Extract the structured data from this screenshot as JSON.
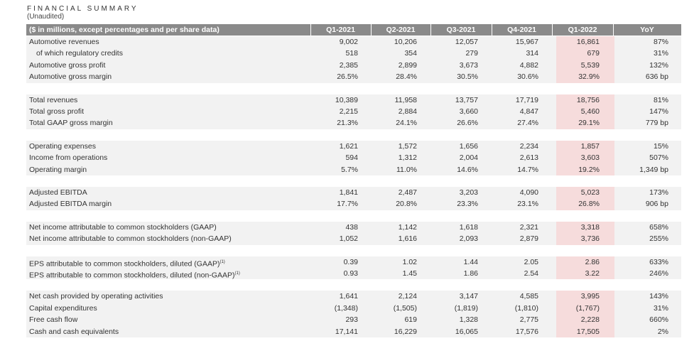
{
  "title": "FINANCIAL SUMMARY",
  "subtitle": "(Unaudited)",
  "header": {
    "label": "($ in millions, except percentages and per share data)",
    "columns": [
      "Q1-2021",
      "Q2-2021",
      "Q3-2021",
      "Q4-2021",
      "Q1-2022",
      "YoY"
    ]
  },
  "groups": [
    {
      "rows": [
        {
          "label": "Automotive revenues",
          "values": [
            "9,002",
            "10,206",
            "12,057",
            "15,967",
            "16,861",
            "87%"
          ]
        },
        {
          "label": "of which regulatory credits",
          "indent": true,
          "values": [
            "518",
            "354",
            "279",
            "314",
            "679",
            "31%"
          ]
        },
        {
          "label": "Automotive gross profit",
          "values": [
            "2,385",
            "2,899",
            "3,673",
            "4,882",
            "5,539",
            "132%"
          ]
        },
        {
          "label": "Automotive gross margin",
          "values": [
            "26.5%",
            "28.4%",
            "30.5%",
            "30.6%",
            "32.9%",
            "636 bp"
          ]
        }
      ]
    },
    {
      "rows": [
        {
          "label": "Total revenues",
          "values": [
            "10,389",
            "11,958",
            "13,757",
            "17,719",
            "18,756",
            "81%"
          ]
        },
        {
          "label": "Total gross profit",
          "values": [
            "2,215",
            "2,884",
            "3,660",
            "4,847",
            "5,460",
            "147%"
          ]
        },
        {
          "label": "Total GAAP gross margin",
          "values": [
            "21.3%",
            "24.1%",
            "26.6%",
            "27.4%",
            "29.1%",
            "779 bp"
          ]
        }
      ]
    },
    {
      "rows": [
        {
          "label": "Operating expenses",
          "values": [
            "1,621",
            "1,572",
            "1,656",
            "2,234",
            "1,857",
            "15%"
          ]
        },
        {
          "label": "Income from operations",
          "values": [
            "594",
            "1,312",
            "2,004",
            "2,613",
            "3,603",
            "507%"
          ]
        },
        {
          "label": "Operating margin",
          "values": [
            "5.7%",
            "11.0%",
            "14.6%",
            "14.7%",
            "19.2%",
            "1,349 bp"
          ]
        }
      ]
    },
    {
      "rows": [
        {
          "label": "Adjusted EBITDA",
          "values": [
            "1,841",
            "2,487",
            "3,203",
            "4,090",
            "5,023",
            "173%"
          ]
        },
        {
          "label": "Adjusted EBITDA margin",
          "values": [
            "17.7%",
            "20.8%",
            "23.3%",
            "23.1%",
            "26.8%",
            "906 bp"
          ]
        }
      ]
    },
    {
      "rows": [
        {
          "label": "Net income attributable to common stockholders (GAAP)",
          "values": [
            "438",
            "1,142",
            "1,618",
            "2,321",
            "3,318",
            "658%"
          ]
        },
        {
          "label": "Net income attributable to common stockholders (non-GAAP)",
          "values": [
            "1,052",
            "1,616",
            "2,093",
            "2,879",
            "3,736",
            "255%"
          ]
        }
      ]
    },
    {
      "rows": [
        {
          "label": "EPS attributable to common stockholders, diluted (GAAP)",
          "footnote": "(1)",
          "values": [
            "0.39",
            "1.02",
            "1.44",
            "2.05",
            "2.86",
            "633%"
          ]
        },
        {
          "label": "EPS attributable to common stockholders, diluted (non-GAAP)",
          "footnote": "(1)",
          "values": [
            "0.93",
            "1.45",
            "1.86",
            "2.54",
            "3.22",
            "246%"
          ]
        }
      ]
    },
    {
      "rows": [
        {
          "label": "Net cash provided by operating activities",
          "values": [
            "1,641",
            "2,124",
            "3,147",
            "4,585",
            "3,995",
            "143%"
          ]
        },
        {
          "label": "Capital expenditures",
          "values": [
            "(1,348)",
            "(1,505)",
            "(1,819)",
            "(1,810)",
            "(1,767)",
            "31%"
          ]
        },
        {
          "label": "Free cash flow",
          "values": [
            "293",
            "619",
            "1,328",
            "2,775",
            "2,228",
            "660%"
          ]
        },
        {
          "label": "Cash and cash equivalents",
          "values": [
            "17,141",
            "16,229",
            "16,065",
            "17,576",
            "17,505",
            "2%"
          ]
        }
      ]
    }
  ],
  "colors": {
    "header_bg": "#8a8a8a",
    "band_bg": "#f2f2f2",
    "highlight": "#f6dcdc"
  }
}
